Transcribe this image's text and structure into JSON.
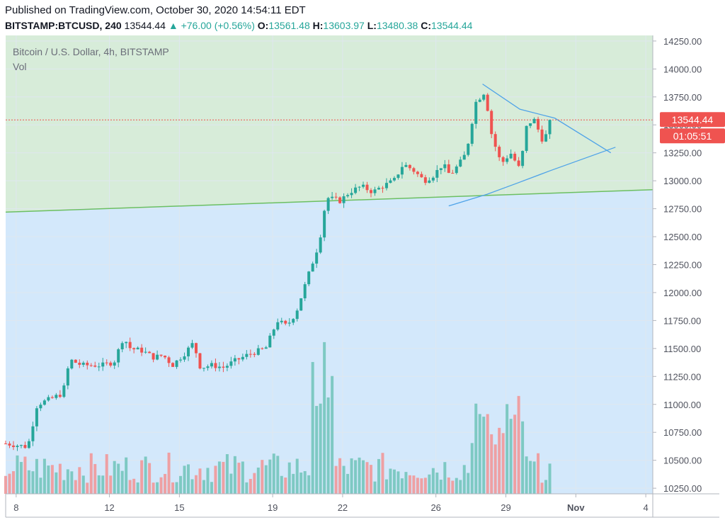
{
  "header": {
    "published": "Published on TradingView.com, October 30, 2020 14:54:11 EDT",
    "symbol": "BITSTAMP:BTCUSD, 240",
    "last": "13544.44",
    "change_arrow": "▲",
    "change": "+76.00 (+0.56%)",
    "o_label": "O:",
    "o_value": "13561.48",
    "h_label": "H:",
    "h_value": "13603.97",
    "l_label": "L:",
    "l_value": "13480.38",
    "c_label": "C:",
    "c_value": "13544.44"
  },
  "colors": {
    "up": "#26a69a",
    "down": "#ef5350",
    "vol_up": "#7ec9c3",
    "vol_down": "#eea0a3",
    "zone_upper": "#d7ecd9",
    "zone_lower": "#d3e8fb",
    "trendline": "#6cbf62",
    "triangle": "#4fa3e8",
    "price_tag": "#ef5350"
  },
  "chart_data": {
    "type": "candlestick",
    "title": "Bitcoin / U.S. Dollar, 4h, BITSTAMP",
    "subtitle": "Vol",
    "y_ticks": [
      "14250.00",
      "14000.00",
      "13750.00",
      "13500.00",
      "13250.00",
      "13000.00",
      "12750.00",
      "12500.00",
      "12250.00",
      "12000.00",
      "11750.00",
      "11500.00",
      "11250.00",
      "11000.00",
      "10750.00",
      "10500.00",
      "10250.00"
    ],
    "y_tick_values": [
      14250,
      14000,
      13750,
      13500,
      13250,
      13000,
      12750,
      12500,
      12250,
      12000,
      11750,
      11500,
      11250,
      11000,
      10750,
      10500,
      10250
    ],
    "ylim": [
      10200,
      14300
    ],
    "x_ticks": [
      "8",
      "12",
      "15",
      "19",
      "22",
      "26",
      "29",
      "Nov",
      "4"
    ],
    "x_tick_days": [
      8,
      12,
      15,
      19,
      22,
      26,
      29,
      32,
      35
    ],
    "x_range_days": [
      7.55,
      35.3
    ],
    "last_price_label": "13544.44",
    "countdown_label": "01:05:51",
    "last_price": 13544.44,
    "zone_boundary": [
      [
        7.55,
        12720
      ],
      [
        35.3,
        12920
      ]
    ],
    "triangle": {
      "upper": [
        [
          28.0,
          13865
        ],
        [
          29.6,
          13640
        ],
        [
          31.1,
          13560
        ],
        [
          33.5,
          13250
        ]
      ],
      "lower": [
        [
          26.55,
          12775
        ],
        [
          28.2,
          12880
        ],
        [
          29.5,
          12980
        ],
        [
          30.9,
          13090
        ],
        [
          33.7,
          13300
        ]
      ]
    },
    "anchors": [
      [
        7.55,
        10650
      ],
      [
        8.5,
        10620
      ],
      [
        8.9,
        11000
      ],
      [
        9.5,
        11050
      ],
      [
        10.0,
        11100
      ],
      [
        10.3,
        11400
      ],
      [
        10.8,
        11350
      ],
      [
        11.2,
        11350
      ],
      [
        11.7,
        11350
      ],
      [
        12.2,
        11380
      ],
      [
        12.6,
        11600
      ],
      [
        12.9,
        11500
      ],
      [
        13.4,
        11480
      ],
      [
        13.9,
        11420
      ],
      [
        14.3,
        11440
      ],
      [
        14.7,
        11350
      ],
      [
        15.2,
        11450
      ],
      [
        15.6,
        11550
      ],
      [
        15.9,
        11330
      ],
      [
        16.4,
        11350
      ],
      [
        16.9,
        11330
      ],
      [
        17.3,
        11380
      ],
      [
        18.0,
        11450
      ],
      [
        18.7,
        11500
      ],
      [
        19.2,
        11750
      ],
      [
        19.6,
        11700
      ],
      [
        20.0,
        11820
      ],
      [
        20.6,
        12200
      ],
      [
        21.0,
        12450
      ],
      [
        21.3,
        12850
      ],
      [
        21.9,
        12820
      ],
      [
        22.3,
        12900
      ],
      [
        22.8,
        12950
      ],
      [
        23.3,
        12900
      ],
      [
        23.7,
        12950
      ],
      [
        24.2,
        13000
      ],
      [
        24.6,
        13150
      ],
      [
        25.0,
        13100
      ],
      [
        25.5,
        13000
      ],
      [
        25.9,
        13050
      ],
      [
        26.3,
        13150
      ],
      [
        26.6,
        13050
      ],
      [
        27.0,
        13150
      ],
      [
        27.3,
        13250
      ],
      [
        27.7,
        13700
      ],
      [
        28.1,
        13800
      ],
      [
        28.4,
        13400
      ],
      [
        28.8,
        13150
      ],
      [
        29.2,
        13250
      ],
      [
        29.6,
        13100
      ],
      [
        29.9,
        13500
      ],
      [
        30.2,
        13550
      ],
      [
        30.6,
        13350
      ],
      [
        31.0,
        13544
      ]
    ],
    "volume_axis_max": 1300
  }
}
